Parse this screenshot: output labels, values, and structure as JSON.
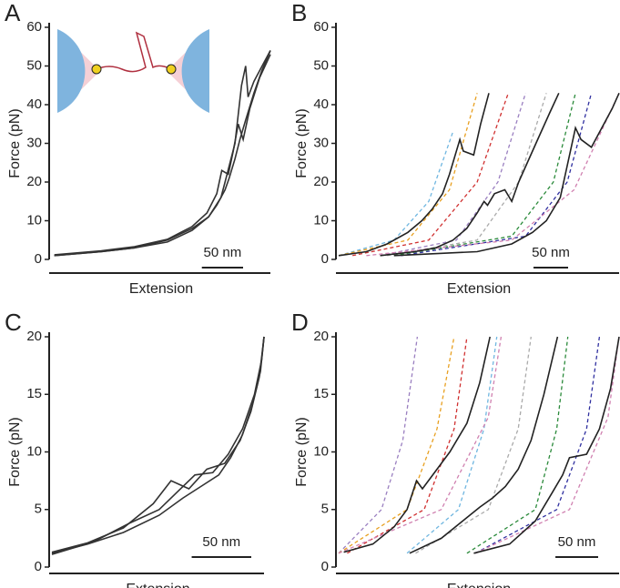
{
  "chart_data": [
    {
      "type": "line",
      "panel": "A",
      "ylabel": "Force (pN)",
      "xlabel": "Extension",
      "xlim": [
        0,
        265
      ],
      "ylim": [
        0,
        60
      ],
      "yticks": [
        0,
        10,
        20,
        30,
        40,
        50,
        60
      ],
      "scalebar": {
        "value": 50,
        "label": "50 nm"
      },
      "series": [
        {
          "color": "#333333",
          "x": [
            3,
            60,
            100,
            140,
            170,
            190,
            200,
            210,
            215,
            222,
            228,
            235,
            245,
            255,
            265
          ],
          "y": [
            1,
            2,
            3,
            5,
            8,
            11,
            14,
            18,
            21,
            26,
            31,
            36,
            43,
            49,
            54
          ]
        },
        {
          "color": "#333333",
          "x": [
            3,
            60,
            100,
            140,
            170,
            190,
            205,
            210,
            222,
            230,
            235,
            238,
            245,
            255,
            265
          ],
          "y": [
            1,
            2,
            3,
            4.5,
            7.5,
            11,
            16,
            20,
            30,
            45,
            50,
            42,
            46,
            50,
            54
          ]
        },
        {
          "color": "#333333",
          "x": [
            3,
            60,
            100,
            140,
            170,
            188,
            200,
            206,
            214,
            220,
            226,
            232,
            240,
            252,
            265
          ],
          "y": [
            1.2,
            2.2,
            3.3,
            5.2,
            8.5,
            12,
            17,
            23,
            22,
            28,
            35,
            31,
            39,
            47,
            53
          ]
        }
      ]
    },
    {
      "type": "line",
      "panel": "B",
      "ylabel": "Force (pN)",
      "xlabel": "Extension",
      "xlim": [
        0,
        405
      ],
      "ylim": [
        0,
        60
      ],
      "yticks": [
        0,
        10,
        20,
        30,
        40,
        50,
        60
      ],
      "scalebar": {
        "value": 50,
        "label": "50 nm"
      },
      "series": [
        {
          "color": "#6fb6e0",
          "dashed": true,
          "x": [
            0,
            80,
            130,
            165
          ],
          "y": [
            1,
            5,
            15,
            33
          ]
        },
        {
          "color": "#e8a020",
          "dashed": true,
          "x": [
            0,
            100,
            160,
            200
          ],
          "y": [
            1,
            5,
            18,
            43
          ]
        },
        {
          "color": "#d03030",
          "dashed": true,
          "x": [
            20,
            130,
            200,
            245
          ],
          "y": [
            1,
            5,
            20,
            43
          ]
        },
        {
          "color": "#9a7fc0",
          "dashed": true,
          "x": [
            60,
            170,
            230,
            270
          ],
          "y": [
            1,
            5,
            20,
            43
          ]
        },
        {
          "color": "#aaaaaa",
          "dashed": true,
          "x": [
            70,
            200,
            260,
            300
          ],
          "y": [
            1,
            5,
            20,
            43
          ]
        },
        {
          "color": "#2a8a3a",
          "dashed": true,
          "x": [
            80,
            250,
            310,
            342
          ],
          "y": [
            1,
            6,
            20,
            43
          ]
        },
        {
          "color": "#3030a0",
          "dashed": true,
          "x": [
            90,
            270,
            330,
            365
          ],
          "y": [
            1,
            6,
            20,
            43
          ]
        },
        {
          "color": "#d080b0",
          "dashed": true,
          "x": [
            40,
            250,
            340,
            405
          ],
          "y": [
            1,
            5,
            18,
            43
          ]
        },
        {
          "color": "#222222",
          "x": [
            0,
            40,
            70,
            100,
            120,
            135,
            150,
            160,
            175,
            180,
            195,
            205,
            217
          ],
          "y": [
            1,
            2,
            4,
            7,
            10,
            13,
            17,
            22,
            31,
            28,
            27,
            35,
            43
          ]
        },
        {
          "color": "#222222",
          "x": [
            60,
            110,
            140,
            165,
            185,
            200,
            210,
            215,
            225,
            240,
            250,
            260,
            275,
            290,
            305,
            318
          ],
          "y": [
            1,
            2,
            3,
            5,
            8,
            12,
            15,
            14,
            17,
            18,
            15,
            20,
            26,
            32,
            38,
            43
          ]
        },
        {
          "color": "#222222",
          "x": [
            80,
            200,
            250,
            280,
            300,
            320,
            342,
            350,
            365,
            380,
            395,
            405
          ],
          "y": [
            1,
            2,
            4,
            7,
            10,
            16,
            34,
            31,
            29,
            34,
            39,
            43
          ]
        }
      ]
    },
    {
      "type": "line",
      "panel": "C",
      "ylabel": "Force (pN)",
      "xlabel": "Extension",
      "xlim": [
        0,
        178
      ],
      "ylim": [
        0,
        20
      ],
      "yticks": [
        0,
        5,
        10,
        15,
        20
      ],
      "scalebar": {
        "value": 50,
        "label": "50 nm"
      },
      "series": [
        {
          "color": "#333333",
          "x": [
            0,
            30,
            60,
            90,
            110,
            125,
            140,
            150,
            160,
            168,
            175,
            178
          ],
          "y": [
            1.2,
            2,
            3,
            4.5,
            6,
            7,
            8,
            9.5,
            11.5,
            14,
            17,
            20
          ]
        },
        {
          "color": "#333333",
          "x": [
            0,
            30,
            60,
            85,
            100,
            115,
            130,
            145,
            158,
            167,
            174,
            178
          ],
          "y": [
            1.3,
            2.1,
            3.4,
            5.5,
            7.5,
            6.8,
            8.5,
            9,
            11,
            13.5,
            16.5,
            20
          ]
        },
        {
          "color": "#333333",
          "x": [
            0,
            35,
            65,
            90,
            105,
            120,
            135,
            148,
            160,
            170,
            176,
            178
          ],
          "y": [
            1.1,
            2.2,
            3.8,
            5,
            6.5,
            8,
            8.2,
            9.8,
            12,
            15,
            18,
            20
          ]
        }
      ]
    },
    {
      "type": "line",
      "panel": "D",
      "ylabel": "Force (pN)",
      "xlabel": "Extension",
      "xlim": [
        0,
        328
      ],
      "ylim": [
        0,
        20
      ],
      "yticks": [
        0,
        5,
        10,
        15,
        20
      ],
      "scalebar": {
        "value": 50,
        "label": "50 nm"
      },
      "series": [
        {
          "color": "#9a7fc0",
          "dashed": true,
          "x": [
            0,
            50,
            75,
            92
          ],
          "y": [
            1.2,
            5,
            11,
            20
          ]
        },
        {
          "color": "#e8a020",
          "dashed": true,
          "x": [
            0,
            80,
            115,
            135
          ],
          "y": [
            1.2,
            5,
            12,
            20
          ]
        },
        {
          "color": "#d03030",
          "dashed": true,
          "x": [
            10,
            100,
            135,
            150
          ],
          "y": [
            1.2,
            5,
            12,
            20
          ]
        },
        {
          "color": "#6fb6e0",
          "dashed": true,
          "x": [
            80,
            140,
            170,
            185
          ],
          "y": [
            1.2,
            5,
            12,
            20
          ]
        },
        {
          "color": "#d080b0",
          "dashed": true,
          "x": [
            0,
            120,
            175,
            190
          ],
          "y": [
            1.2,
            5,
            13,
            20
          ]
        },
        {
          "color": "#aaaaaa",
          "dashed": true,
          "x": [
            90,
            175,
            210,
            225
          ],
          "y": [
            1.2,
            5,
            12,
            20
          ]
        },
        {
          "color": "#2a8a3a",
          "dashed": true,
          "x": [
            150,
            230,
            255,
            268
          ],
          "y": [
            1.2,
            5,
            12,
            20
          ]
        },
        {
          "color": "#3030a0",
          "dashed": true,
          "x": [
            160,
            255,
            290,
            305
          ],
          "y": [
            1.2,
            5,
            12,
            20
          ]
        },
        {
          "color": "#d080b0",
          "dashed": true,
          "x": [
            160,
            270,
            315,
            328
          ],
          "y": [
            1.2,
            5,
            13,
            20
          ]
        },
        {
          "color": "#222222",
          "x": [
            6,
            40,
            65,
            80,
            91,
            98,
            115,
            130,
            150,
            165,
            177
          ],
          "y": [
            1.3,
            2,
            3.5,
            5,
            7.5,
            6.8,
            8.5,
            10,
            12.5,
            16,
            20
          ]
        },
        {
          "color": "#222222",
          "x": [
            83,
            120,
            145,
            165,
            180,
            195,
            210,
            225,
            240,
            256
          ],
          "y": [
            1.2,
            2.5,
            4,
            5.2,
            6,
            7,
            8.5,
            11,
            15,
            20
          ]
        },
        {
          "color": "#222222",
          "x": [
            158,
            200,
            230,
            250,
            262,
            270,
            290,
            305,
            318,
            328
          ],
          "y": [
            1.2,
            2,
            4,
            6.5,
            8,
            9.5,
            9.8,
            12,
            15.5,
            20
          ]
        }
      ]
    }
  ]
}
